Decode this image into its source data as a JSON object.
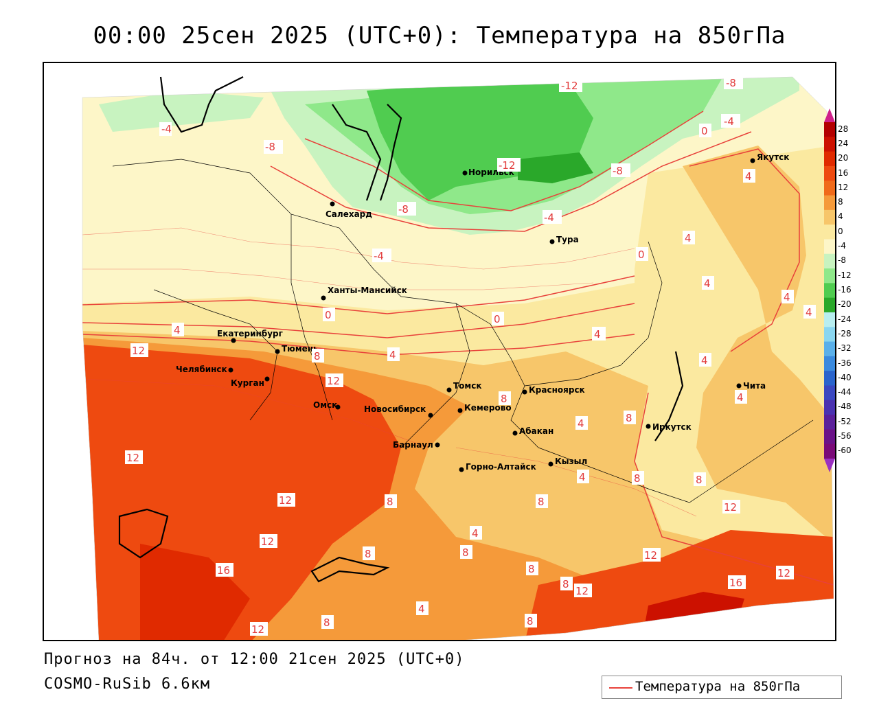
{
  "title": "00:00 25сен 2025 (UTC+0): Температура на 850гПа",
  "footer": {
    "forecast": "Прогноз на 84ч. от 12:00 21сен 2025 (UTC+0)",
    "model": "COSMO-RuSib 6.6км"
  },
  "legend": {
    "label": "Температура на 850гПа",
    "line_color": "#e8413a"
  },
  "colorbar": {
    "ticks": [
      "28",
      "24",
      "20",
      "16",
      "12",
      "8",
      "4",
      "0",
      "-4",
      "-8",
      "-12",
      "-16",
      "-20",
      "-24",
      "-28",
      "-32",
      "-36",
      "-40",
      "-44",
      "-48",
      "-52",
      "-56",
      "-60"
    ],
    "colors": [
      "#b30000",
      "#cc1100",
      "#e02a00",
      "#ee4a10",
      "#f06a1a",
      "#f59a3a",
      "#f7c66a",
      "#fbe9a0",
      "#fdf6c8",
      "#c8f3c0",
      "#8fe88a",
      "#50cc50",
      "#2aa82a",
      "#b8eef0",
      "#8ad6f0",
      "#5ab0ea",
      "#3a8ade",
      "#2a64cc",
      "#3a48c0",
      "#4a32b0",
      "#5a209a",
      "#6a1288",
      "#7a0a78"
    ],
    "top_color": "#d0208a",
    "bottom_color": "#9a30c0"
  },
  "cities": [
    {
      "name": "Якутск"
    },
    {
      "name": "Норильск"
    },
    {
      "name": "Салехард"
    },
    {
      "name": "Тура"
    },
    {
      "name": "Ханты-Мансийск"
    },
    {
      "name": "Екатеринбург"
    },
    {
      "name": "Тюмень"
    },
    {
      "name": "Челябинск"
    },
    {
      "name": "Курган"
    },
    {
      "name": "Омск"
    },
    {
      "name": "Новосибирск"
    },
    {
      "name": "Томск"
    },
    {
      "name": "Кемерово"
    },
    {
      "name": "Красноярск"
    },
    {
      "name": "Абакан"
    },
    {
      "name": "Барнаул"
    },
    {
      "name": "Горно-Алтайск"
    },
    {
      "name": "Кызыл"
    },
    {
      "name": "Иркутск"
    },
    {
      "name": "Чита"
    }
  ],
  "isotherm_labels": [
    "-12",
    "-8",
    "-4",
    "0",
    "-4",
    "-8",
    "-12",
    "-8",
    "-8",
    "-4",
    "-4",
    "4",
    "4",
    "0",
    "4",
    "4",
    "4",
    "4",
    "4",
    "0",
    "0",
    "4",
    "4",
    "12",
    "8",
    "4",
    "12",
    "8",
    "4",
    "8",
    "4",
    "8",
    "12",
    "12",
    "8",
    "4",
    "8",
    "8",
    "12",
    "12",
    "8",
    "12",
    "16",
    "8",
    "8",
    "8",
    "12",
    "16",
    "12",
    "4",
    "8",
    "12",
    "8",
    "4"
  ]
}
